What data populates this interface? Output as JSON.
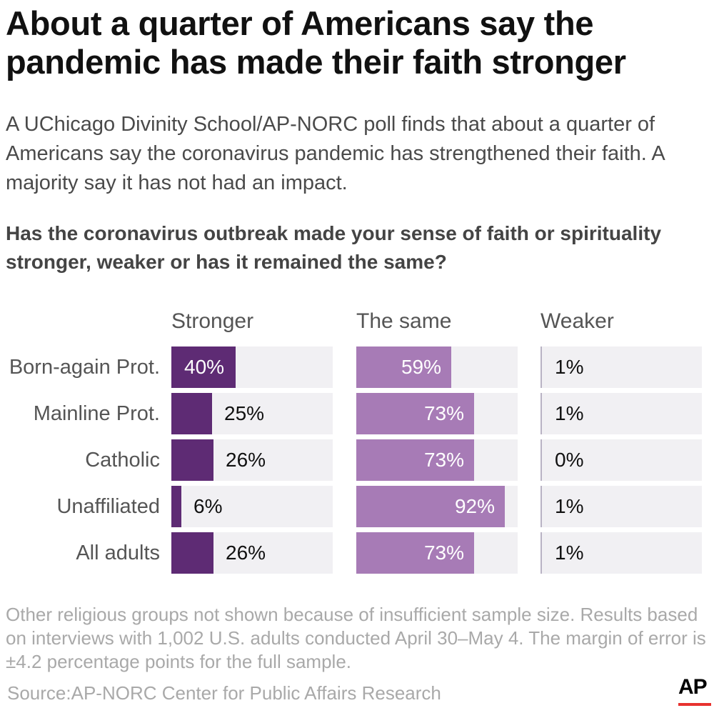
{
  "title": "About a quarter of Americans say the pandemic has made their faith stronger",
  "subtitle": "A UChicago Divinity School/AP-NORC poll finds that about a quarter of Americans say the coronavirus pandemic has strengthened their faith. A majority say it has not had an impact.",
  "question": "Has the coronavirus outbreak made your sense of faith or spirituality stronger, weaker or has it remained the same?",
  "notes": "Other religious groups not shown because of insufficient sample size. Results based on interviews with 1,002 U.S. adults conducted April 30–May 4. The margin of error is ±4.2 percentage points for the full sample.",
  "source": "Source:AP-NORC Center for Public Affairs Research",
  "logo": "AP",
  "colors": {
    "stronger": "#5e2b74",
    "same": "#a77bb6",
    "weaker": "#b9b3c4",
    "track": "#f1f0f3"
  },
  "chart_data": {
    "type": "bar",
    "categories": [
      "Born-again Prot.",
      "Mainline Prot.",
      "Catholic",
      "Unaffiliated",
      "All adults"
    ],
    "series": [
      {
        "name": "Stronger",
        "values": [
          40,
          25,
          26,
          6,
          26
        ],
        "labels": [
          "40%",
          "25%",
          "26%",
          "6%",
          "26%"
        ]
      },
      {
        "name": "The same",
        "values": [
          59,
          73,
          73,
          92,
          73
        ],
        "labels": [
          "59%",
          "73%",
          "73%",
          "92%",
          "73%"
        ]
      },
      {
        "name": "Weaker",
        "values": [
          1,
          1,
          0,
          1,
          1
        ],
        "labels": [
          "1%",
          "1%",
          "0%",
          "1%",
          "1%"
        ]
      }
    ],
    "xlim": [
      0,
      100
    ]
  }
}
